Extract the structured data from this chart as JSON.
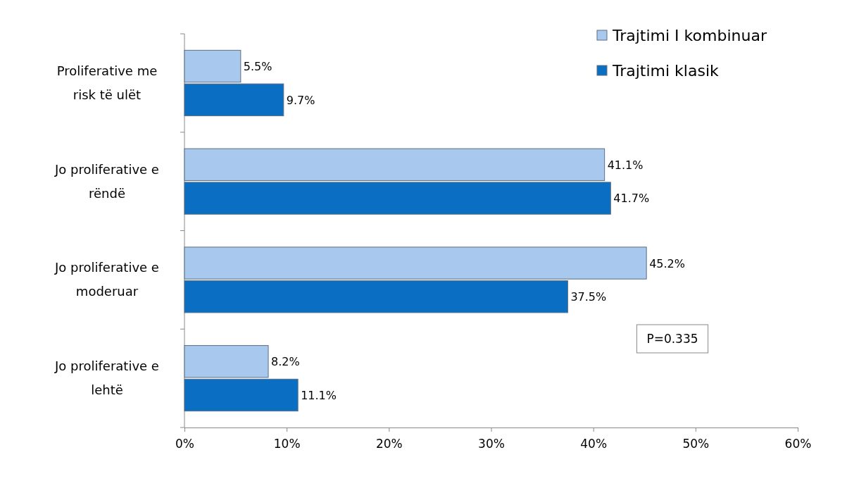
{
  "chart_data": {
    "type": "bar",
    "orientation": "horizontal",
    "categories": [
      "Proliferative me risk të ulët",
      "Jo proliferative e rëndë",
      "Jo proliferative e moderuar",
      "Jo proliferative e lehtë"
    ],
    "series": [
      {
        "name": "Trajtimi I kombinuar",
        "color": "#a9c8ee",
        "values": [
          5.5,
          41.1,
          45.2,
          8.2
        ],
        "value_labels": [
          "5.5%",
          "41.1%",
          "45.2%",
          "8.2%"
        ]
      },
      {
        "name": "Trajtimi klasik",
        "color": "#0a6fc2",
        "values": [
          9.7,
          41.7,
          37.5,
          11.1
        ],
        "value_labels": [
          "9.7%",
          "41.7%",
          "37.5%",
          "11.1%"
        ]
      }
    ],
    "xlim": [
      0,
      60
    ],
    "xticks": [
      {
        "value": 0,
        "label": "0%"
      },
      {
        "value": 10,
        "label": "10%"
      },
      {
        "value": 20,
        "label": "20%"
      },
      {
        "value": 30,
        "label": "30%"
      },
      {
        "value": 40,
        "label": "40%"
      },
      {
        "value": 50,
        "label": "50%"
      },
      {
        "value": 60,
        "label": "60%"
      }
    ],
    "legend": "top right",
    "annotations": [
      "P=0.335"
    ]
  }
}
